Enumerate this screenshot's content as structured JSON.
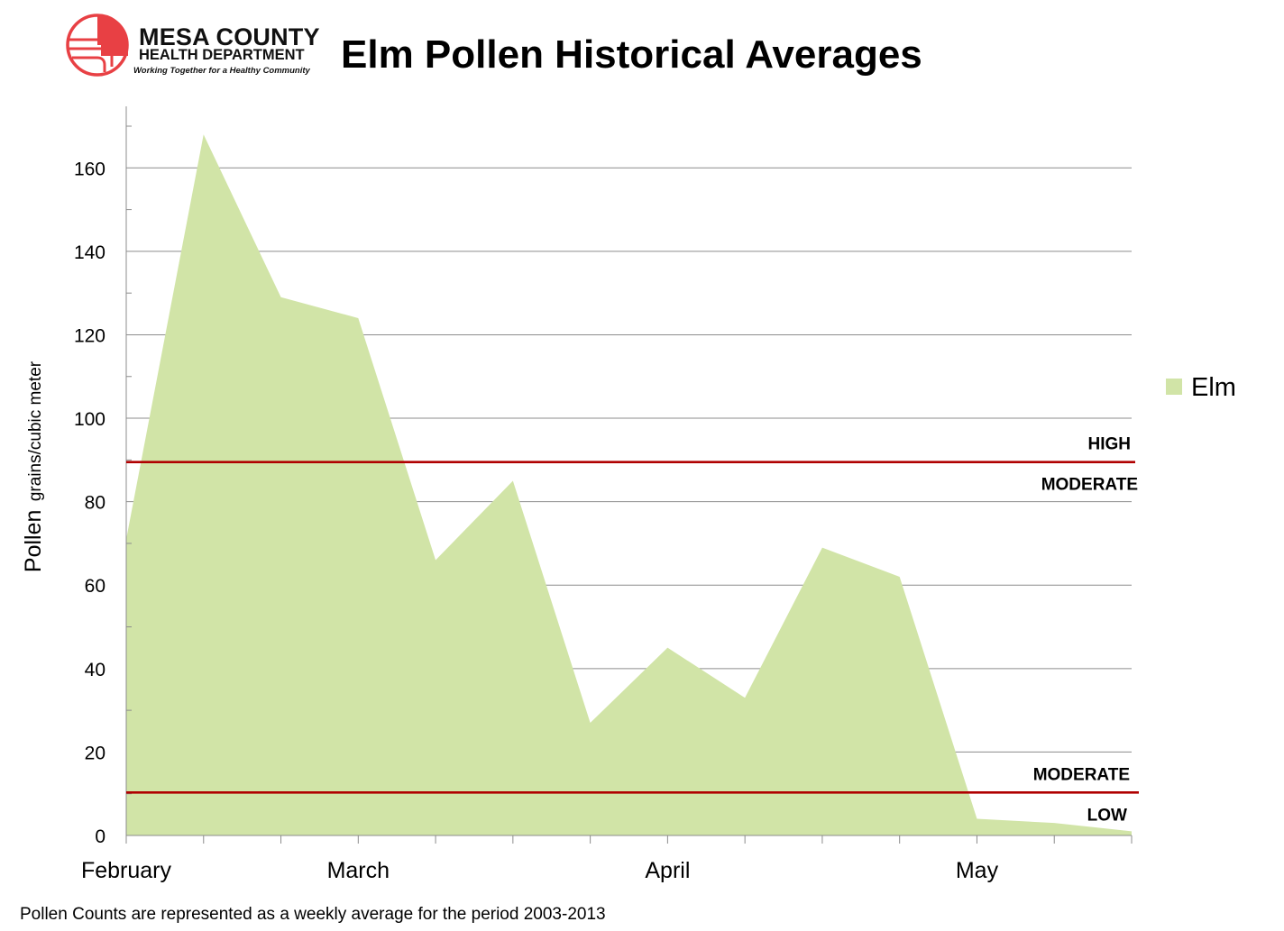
{
  "logo": {
    "org_line1": "MESA COUNTY",
    "org_line2": "HEALTH DEPARTMENT",
    "tagline": "Working Together for a Healthy Community",
    "accent_color": "#e84044"
  },
  "footnote": "Pollen Counts are represented as a weekly average for the period 2003-2013",
  "chart_data": {
    "type": "area",
    "title": "Elm Pollen Historical Averages",
    "ylabel_main": "Pollen",
    "ylabel_unit": "grains/cubic meter",
    "ylim": [
      0,
      170
    ],
    "yticks": [
      0,
      20,
      40,
      60,
      80,
      100,
      120,
      140,
      160
    ],
    "grid": true,
    "legend_position": "right",
    "x_month_labels": [
      {
        "index": 0,
        "label": "February"
      },
      {
        "index": 3,
        "label": "March"
      },
      {
        "index": 7,
        "label": "April"
      },
      {
        "index": 11,
        "label": "May"
      }
    ],
    "series": [
      {
        "name": "Elm",
        "color": "#d1e4a7",
        "values": [
          71,
          168,
          129,
          124,
          66,
          85,
          27,
          45,
          33,
          69,
          62,
          4,
          3,
          1
        ]
      }
    ],
    "thresholds": [
      {
        "value": 89.5,
        "color": "#b00000",
        "label_above": "HIGH",
        "label_below": "MODERATE"
      },
      {
        "value": 10.3,
        "color": "#b00000",
        "label_above": "MODERATE",
        "label_below": "LOW"
      }
    ]
  }
}
